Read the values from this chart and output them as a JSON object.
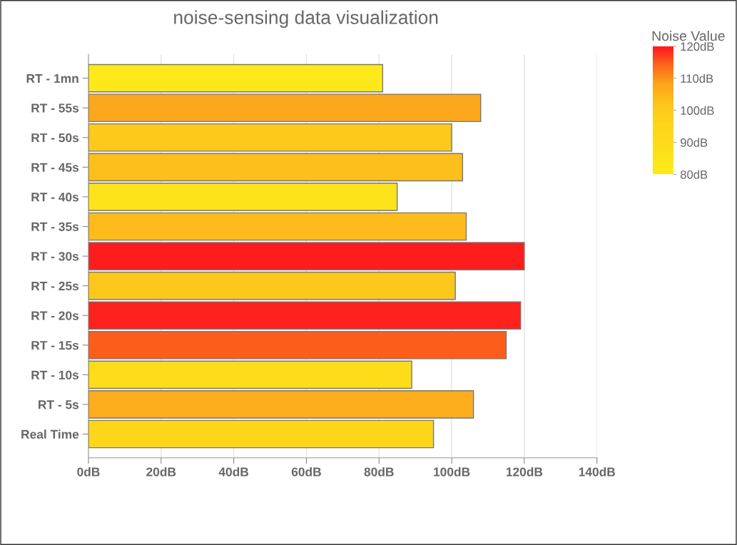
{
  "chart_data": {
    "type": "bar",
    "orientation": "horizontal",
    "title": "noise-sensing data visualization",
    "categories": [
      "RT - 1mn",
      "RT - 55s",
      "RT - 50s",
      "RT - 45s",
      "RT - 40s",
      "RT - 35s",
      "RT - 30s",
      "RT - 25s",
      "RT - 20s",
      "RT - 15s",
      "RT - 10s",
      "RT - 5s",
      "Real Time"
    ],
    "values": [
      81,
      108,
      100,
      103,
      85,
      104,
      120,
      101,
      119,
      115,
      89,
      106,
      95
    ],
    "colors": [
      "#fde91a",
      "#fca81c",
      "#fdca1c",
      "#fdbf1c",
      "#fde31a",
      "#fdbb1c",
      "#fe1c1c",
      "#fdc71c",
      "#fe221f",
      "#fd5d1b",
      "#fddc1a",
      "#fdae1c",
      "#fdd61a"
    ],
    "xlim": [
      0,
      140
    ],
    "xticks": [
      {
        "value": 0,
        "label": "0dB"
      },
      {
        "value": 20,
        "label": "20dB"
      },
      {
        "value": 40,
        "label": "40dB"
      },
      {
        "value": 60,
        "label": "60dB"
      },
      {
        "value": 80,
        "label": "80dB"
      },
      {
        "value": 100,
        "label": "100dB"
      },
      {
        "value": 120,
        "label": "120dB"
      },
      {
        "value": 140,
        "label": "140dB"
      }
    ],
    "clabel": "Noise Value",
    "clim": [
      80,
      120
    ],
    "cticks": [
      {
        "value": 120,
        "label": "120dB"
      },
      {
        "value": 110,
        "label": "110dB"
      },
      {
        "value": 100,
        "label": "100dB"
      },
      {
        "value": 90,
        "label": "90dB"
      },
      {
        "value": 80,
        "label": "80dB"
      }
    ],
    "grid": "x"
  }
}
